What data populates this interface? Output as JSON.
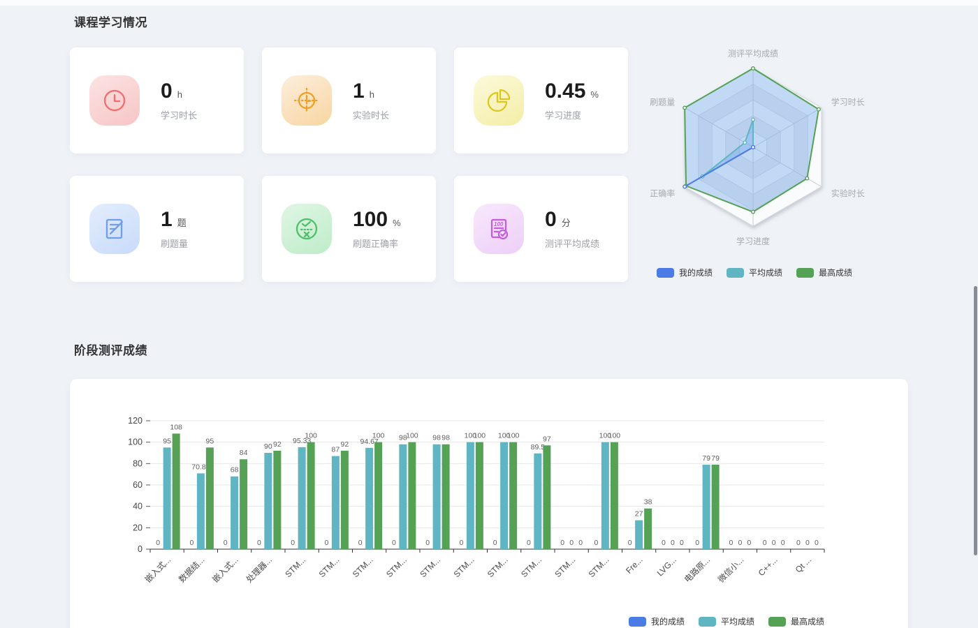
{
  "sections": {
    "learning": {
      "title": "课程学习情况"
    },
    "stage": {
      "title": "阶段测评成绩"
    }
  },
  "stat_cards": [
    {
      "value": "0",
      "unit": "h",
      "label": "学习时长",
      "icon": "clock-icon",
      "icon_color": "#f26d6d",
      "icon_bg_from": "#fce3e3",
      "icon_bg_to": "#f7c5c5"
    },
    {
      "value": "1",
      "unit": "h",
      "label": "实验时长",
      "icon": "experiment-clock-icon",
      "icon_color": "#efa125",
      "icon_bg_from": "#fdeedd",
      "icon_bg_to": "#f8d5a1"
    },
    {
      "value": "0.45",
      "unit": "%",
      "label": "学习进度",
      "icon": "progress-pie-icon",
      "icon_color": "#ddc71f",
      "icon_bg_from": "#fcfadc",
      "icon_bg_to": "#f4eda5"
    },
    {
      "value": "1",
      "unit": "题",
      "label": "刷题量",
      "icon": "exercise-edit-icon",
      "icon_color": "#6f9ef0",
      "icon_bg_from": "#e3edfd",
      "icon_bg_to": "#c8dbfa"
    },
    {
      "value": "100",
      "unit": "%",
      "label": "刷题正确率",
      "icon": "accuracy-check-icon",
      "icon_color": "#4fbf6a",
      "icon_bg_from": "#e0f6e5",
      "icon_bg_to": "#beecc8"
    },
    {
      "value": "0",
      "unit": "分",
      "label": "测评平均成绩",
      "icon": "score-sheet-icon",
      "icon_color": "#c55ce2",
      "icon_bg_from": "#f8e8fd",
      "icon_bg_to": "#edcff7"
    }
  ],
  "legend": {
    "items": [
      {
        "label": "我的成绩",
        "color": "#4b7be5"
      },
      {
        "label": "平均成绩",
        "color": "#60b5c2"
      },
      {
        "label": "最高成绩",
        "color": "#55a155"
      }
    ]
  },
  "chart_data": [
    {
      "type": "radar",
      "indicators": [
        "测评平均成绩",
        "学习时长",
        "实验时长",
        "学习进度",
        "正确率",
        "刷题量"
      ],
      "max": 100,
      "rings": 5,
      "legend_position": "bottom",
      "series": [
        {
          "name": "我的成绩",
          "color": "#4b7be5",
          "values": [
            0,
            0,
            0,
            0,
            100,
            0
          ]
        },
        {
          "name": "平均成绩",
          "color": "#60b5c2",
          "values": [
            35,
            0,
            0,
            0,
            74,
            12
          ]
        },
        {
          "name": "最高成绩",
          "color": "#55a155",
          "values": [
            100,
            96,
            79,
            82,
            98,
            100
          ]
        }
      ],
      "area_fill": "rgba(116,169,233,0.42)"
    },
    {
      "type": "bar",
      "categories": [
        "嵌入式...",
        "数据结...",
        "嵌入式...",
        "处理器...",
        "STM...",
        "STM...",
        "STM...",
        "STM...",
        "STM...",
        "STM...",
        "STM...",
        "STM...",
        "STM...",
        "STM...",
        "Fre...",
        "LVG...",
        "电路原...",
        "微信小...",
        "C++...",
        "Qt ..."
      ],
      "series": [
        {
          "name": "我的成绩",
          "color": "#4b7be5",
          "values": [
            0,
            0,
            0,
            0,
            0,
            0,
            0,
            0,
            0,
            0,
            0,
            0,
            0,
            0,
            0,
            0,
            0,
            0,
            0,
            0
          ]
        },
        {
          "name": "平均成绩",
          "color": "#60b5c2",
          "values": [
            95,
            70.83,
            68,
            90,
            95.33,
            87,
            94.67,
            98,
            98,
            100,
            100,
            89.5,
            0,
            100,
            27,
            0,
            79,
            0,
            0,
            0
          ]
        },
        {
          "name": "最高成绩",
          "color": "#55a155",
          "values": [
            108,
            95,
            84,
            92,
            100,
            92,
            100,
            100,
            98,
            100,
            100,
            97,
            0,
            100,
            38,
            0,
            79,
            0,
            0,
            0
          ]
        }
      ],
      "ylim": [
        0,
        120
      ],
      "yticks": [
        0,
        20,
        40,
        60,
        80,
        100,
        120
      ],
      "grid": true,
      "show_value_labels": true,
      "legend_position": "bottom-right"
    }
  ]
}
